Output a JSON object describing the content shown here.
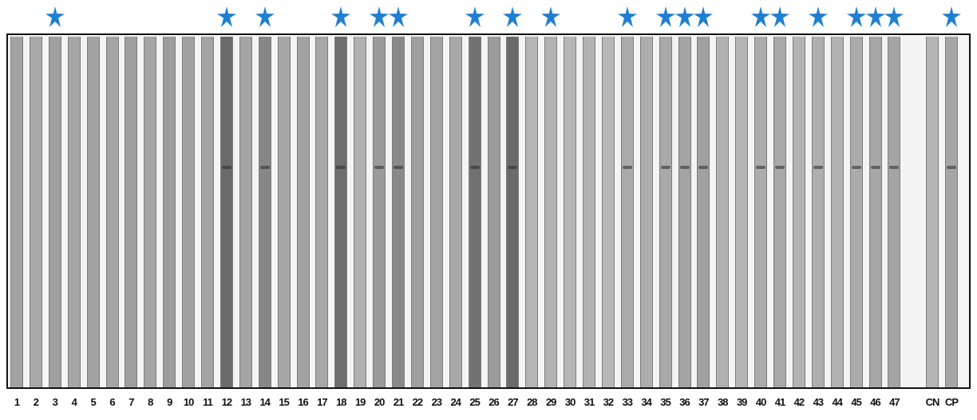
{
  "lanes": [
    {
      "label": "1",
      "star": false,
      "tone": "#a3a3a3",
      "band": false
    },
    {
      "label": "2",
      "star": false,
      "tone": "#a8a8a8",
      "band": false
    },
    {
      "label": "3",
      "star": true,
      "tone": "#a0a0a0",
      "band": false
    },
    {
      "label": "4",
      "star": false,
      "tone": "#a6a6a6",
      "band": false
    },
    {
      "label": "5",
      "star": false,
      "tone": "#a2a2a2",
      "band": false
    },
    {
      "label": "6",
      "star": false,
      "tone": "#a4a4a4",
      "band": false
    },
    {
      "label": "7",
      "star": false,
      "tone": "#9e9e9e",
      "band": false
    },
    {
      "label": "8",
      "star": false,
      "tone": "#a5a5a5",
      "band": false
    },
    {
      "label": "9",
      "star": false,
      "tone": "#9c9c9c",
      "band": false
    },
    {
      "label": "10",
      "star": false,
      "tone": "#a1a1a1",
      "band": false
    },
    {
      "label": "11",
      "star": false,
      "tone": "#a3a3a3",
      "band": false
    },
    {
      "label": "12",
      "star": true,
      "tone": "#6a6a6a",
      "band": true
    },
    {
      "label": "13",
      "star": false,
      "tone": "#a4a4a4",
      "band": false
    },
    {
      "label": "14",
      "star": true,
      "tone": "#878787",
      "band": true
    },
    {
      "label": "15",
      "star": false,
      "tone": "#a6a6a6",
      "band": false
    },
    {
      "label": "16",
      "star": false,
      "tone": "#a2a2a2",
      "band": false
    },
    {
      "label": "17",
      "star": false,
      "tone": "#a7a7a7",
      "band": false
    },
    {
      "label": "18",
      "star": true,
      "tone": "#6e6e6e",
      "band": true
    },
    {
      "label": "19",
      "star": false,
      "tone": "#b0b0b0",
      "band": false
    },
    {
      "label": "20",
      "star": true,
      "tone": "#9a9a9a",
      "band": true
    },
    {
      "label": "21",
      "star": true,
      "tone": "#8a8a8a",
      "band": true
    },
    {
      "label": "22",
      "star": false,
      "tone": "#9f9f9f",
      "band": false
    },
    {
      "label": "23",
      "star": false,
      "tone": "#a3a3a3",
      "band": false
    },
    {
      "label": "24",
      "star": false,
      "tone": "#a8a8a8",
      "band": false
    },
    {
      "label": "25",
      "star": true,
      "tone": "#727272",
      "band": true
    },
    {
      "label": "26",
      "star": false,
      "tone": "#9b9b9b",
      "band": false
    },
    {
      "label": "27",
      "star": true,
      "tone": "#6b6b6b",
      "band": true
    },
    {
      "label": "28",
      "star": false,
      "tone": "#b5b5b5",
      "band": false
    },
    {
      "label": "29",
      "star": true,
      "tone": "#b2b2b2",
      "band": false
    },
    {
      "label": "30",
      "star": false,
      "tone": "#b6b6b6",
      "band": false
    },
    {
      "label": "31",
      "star": false,
      "tone": "#b3b3b3",
      "band": false
    },
    {
      "label": "32",
      "star": false,
      "tone": "#b7b7b7",
      "band": false
    },
    {
      "label": "33",
      "star": true,
      "tone": "#aaaaaa",
      "band": true
    },
    {
      "label": "34",
      "star": false,
      "tone": "#adadad",
      "band": false
    },
    {
      "label": "35",
      "star": true,
      "tone": "#a9a9a9",
      "band": true
    },
    {
      "label": "36",
      "star": true,
      "tone": "#a4a4a4",
      "band": true
    },
    {
      "label": "37",
      "star": true,
      "tone": "#a0a0a0",
      "band": true
    },
    {
      "label": "38",
      "star": false,
      "tone": "#b1b1b1",
      "band": false
    },
    {
      "label": "39",
      "star": false,
      "tone": "#b4b4b4",
      "band": false
    },
    {
      "label": "40",
      "star": true,
      "tone": "#acacac",
      "band": true
    },
    {
      "label": "41",
      "star": true,
      "tone": "#a8a8a8",
      "band": true
    },
    {
      "label": "42",
      "star": false,
      "tone": "#b3b3b3",
      "band": false
    },
    {
      "label": "43",
      "star": true,
      "tone": "#aeaeae",
      "band": true
    },
    {
      "label": "44",
      "star": false,
      "tone": "#b2b2b2",
      "band": false
    },
    {
      "label": "45",
      "star": true,
      "tone": "#ababab",
      "band": true
    },
    {
      "label": "46",
      "star": true,
      "tone": "#a7a7a7",
      "band": true
    },
    {
      "label": "47",
      "star": true,
      "tone": "#a5a5a5",
      "band": true
    },
    {
      "label": "CN",
      "star": false,
      "tone": "#b4b4b4",
      "band": false
    },
    {
      "label": "CP",
      "star": true,
      "tone": "#a6a6a6",
      "band": true
    }
  ],
  "colors": {
    "star": "#1f7fd1",
    "frame": "#111111"
  }
}
